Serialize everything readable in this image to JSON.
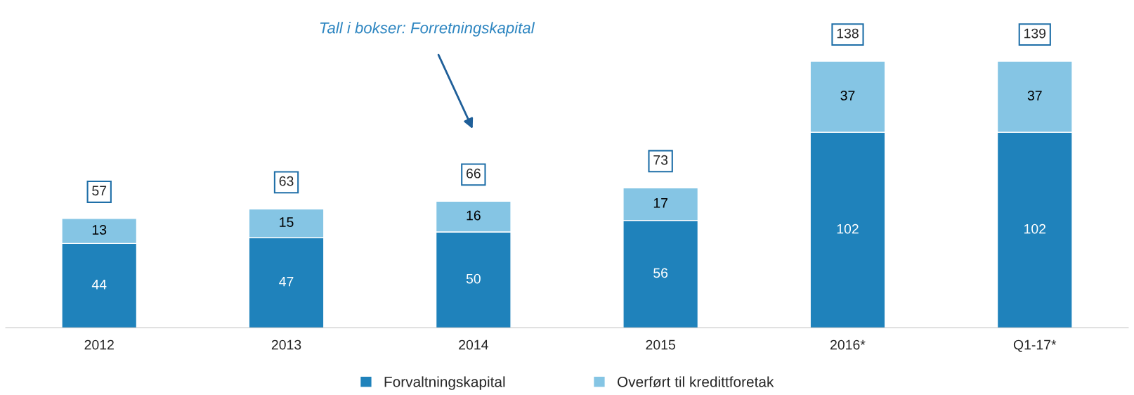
{
  "chart_data": {
    "type": "bar",
    "stacked": true,
    "categories": [
      "2012",
      "2013",
      "2014",
      "2015",
      "2016*",
      "Q1-17*"
    ],
    "series": [
      {
        "name": "Forvaltningskapital",
        "color": "#1f82bb",
        "values": [
          44,
          47,
          50,
          56,
          102,
          102
        ]
      },
      {
        "name": "Overført til kredittforetak",
        "color": "#85c5e4",
        "values": [
          13,
          15,
          16,
          17,
          37,
          37
        ]
      }
    ],
    "data_labels": true,
    "totals": [
      "57",
      "63",
      "66",
      "73",
      "138",
      "139"
    ],
    "annotations": [
      "Tall i bokser: Forretningskapital"
    ],
    "legend": "bottom",
    "grid": false
  }
}
